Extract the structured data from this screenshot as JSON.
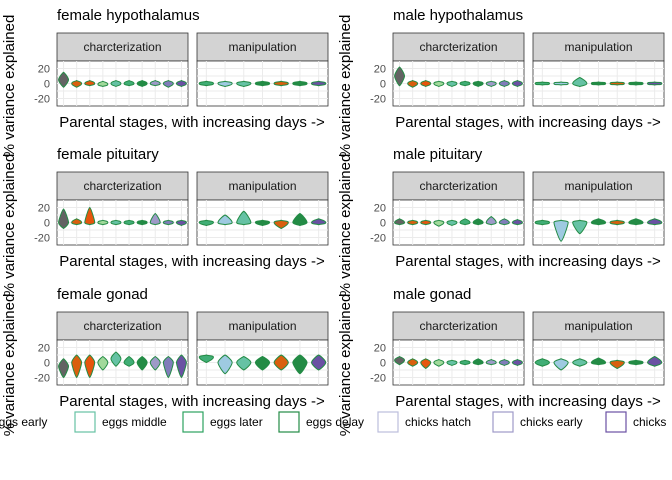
{
  "panel_labels": {
    "strips": [
      "charcterization",
      "manipulation"
    ],
    "xlabel": "Parental stages, with increasing days ->",
    "ylabel": "% variance explained",
    "yticks": [
      "20",
      "0",
      "-20"
    ]
  },
  "legend": {
    "items": [
      {
        "label": "eggs early",
        "color": "#4d4d4d"
      },
      {
        "label": "eggs middle",
        "color": "#66c2a4"
      },
      {
        "label": "eggs later",
        "color": "#2ca25f"
      },
      {
        "label": "eggs delay",
        "color": "#238b45"
      },
      {
        "label": "chicks hatch",
        "color": "#bcbddc"
      },
      {
        "label": "chicks early",
        "color": "#9e9ac8"
      },
      {
        "label": "chicks",
        "color": "#6a51a3"
      }
    ]
  },
  "colors": {
    "strip_bg": "#d3d3d3",
    "panel_border": "#333333",
    "grid": "#ebebeb",
    "violin_stroke": "#238b45",
    "char_fill": [
      "#636363",
      "#d95f0e",
      "#e6550d",
      "#a1d99b",
      "#66c2a4",
      "#41ae76",
      "#238b45",
      "#9e9ac8",
      "#807dba",
      "#6a51a3"
    ],
    "manip_fill": [
      "#41ae76",
      "#9ecae1",
      "#66c2a4",
      "#238b45",
      "#d95f0e",
      "#238b45",
      "#6a51a3"
    ]
  },
  "chart_data": [
    {
      "type": "violin",
      "title": "female hypothalamus",
      "ylim": [
        -30,
        30
      ],
      "series": [
        {
          "name": "charcterization",
          "center": [
            5,
            0,
            0,
            -1,
            0,
            0,
            0,
            0,
            0,
            0
          ],
          "min": [
            -5,
            -5,
            -3,
            -4,
            -4,
            -3,
            -4,
            -3,
            -5,
            -4
          ],
          "max": [
            15,
            4,
            4,
            3,
            4,
            4,
            4,
            4,
            4,
            4
          ]
        },
        {
          "name": "manipulation",
          "center": [
            0,
            0,
            0,
            0,
            0,
            0,
            0
          ],
          "min": [
            -3,
            -4,
            -4,
            -3,
            -3,
            -3,
            -3
          ],
          "max": [
            3,
            3,
            3,
            3,
            3,
            3,
            3
          ]
        }
      ]
    },
    {
      "type": "violin",
      "title": "male hypothalamus",
      "ylim": [
        -30,
        30
      ],
      "series": [
        {
          "name": "charcterization",
          "center": [
            10,
            0,
            0,
            0,
            0,
            0,
            0,
            0,
            0,
            0
          ],
          "min": [
            -3,
            -5,
            -4,
            -4,
            -4,
            -3,
            -4,
            -4,
            -4,
            -4
          ],
          "max": [
            22,
            4,
            4,
            3,
            3,
            3,
            3,
            3,
            4,
            4
          ]
        },
        {
          "name": "manipulation",
          "center": [
            0,
            0,
            0,
            0,
            0,
            0,
            0
          ],
          "min": [
            -2,
            -2,
            -4,
            -2,
            -2,
            -2,
            -2
          ],
          "max": [
            2,
            2,
            8,
            2,
            2,
            2,
            2
          ]
        }
      ]
    },
    {
      "type": "violin",
      "title": "female pituitary",
      "ylim": [
        -30,
        30
      ],
      "series": [
        {
          "name": "charcterization",
          "center": [
            0,
            0,
            0,
            0,
            0,
            0,
            0,
            0,
            0,
            0
          ],
          "min": [
            -8,
            -3,
            -3,
            -3,
            -3,
            -3,
            -3,
            -3,
            -3,
            -4
          ],
          "max": [
            18,
            5,
            20,
            3,
            3,
            3,
            3,
            12,
            3,
            3
          ]
        },
        {
          "name": "manipulation",
          "center": [
            0,
            0,
            0,
            0,
            0,
            0,
            0
          ],
          "min": [
            -4,
            -3,
            -3,
            -4,
            -8,
            -4,
            -3
          ],
          "max": [
            3,
            10,
            15,
            3,
            3,
            12,
            5
          ]
        }
      ]
    },
    {
      "type": "violin",
      "title": "male pituitary",
      "ylim": [
        -30,
        30
      ],
      "series": [
        {
          "name": "charcterization",
          "center": [
            0,
            0,
            0,
            0,
            0,
            0,
            0,
            0,
            0,
            0
          ],
          "min": [
            -3,
            -3,
            -3,
            -5,
            -4,
            -3,
            -3,
            -3,
            -3,
            -3
          ],
          "max": [
            5,
            3,
            3,
            3,
            3,
            5,
            5,
            8,
            5,
            4
          ]
        },
        {
          "name": "manipulation",
          "center": [
            0,
            0,
            0,
            0,
            0,
            0,
            0
          ],
          "min": [
            -3,
            -25,
            -15,
            -3,
            -3,
            -3,
            -3
          ],
          "max": [
            3,
            3,
            3,
            5,
            3,
            5,
            5
          ]
        }
      ]
    },
    {
      "type": "violin",
      "title": "female gonad",
      "ylim": [
        -30,
        30
      ],
      "series": [
        {
          "name": "charcterization",
          "center": [
            -5,
            0,
            0,
            0,
            5,
            0,
            0,
            0,
            0,
            0
          ],
          "min": [
            -20,
            -20,
            -20,
            -10,
            -5,
            -5,
            -10,
            -10,
            -20,
            -20
          ],
          "max": [
            5,
            10,
            10,
            8,
            14,
            8,
            8,
            8,
            8,
            10
          ]
        },
        {
          "name": "manipulation",
          "center": [
            7,
            0,
            0,
            0,
            0,
            0,
            0
          ],
          "min": [
            0,
            -15,
            -10,
            -10,
            -10,
            -15,
            -10
          ],
          "max": [
            10,
            10,
            8,
            8,
            10,
            10,
            10
          ]
        }
      ]
    },
    {
      "type": "violin",
      "title": "male gonad",
      "ylim": [
        -30,
        30
      ],
      "series": [
        {
          "name": "charcterization",
          "center": [
            3,
            0,
            0,
            0,
            0,
            0,
            0,
            0,
            0,
            0
          ],
          "min": [
            -3,
            -5,
            -8,
            -5,
            -4,
            -3,
            -3,
            -3,
            -4,
            -4
          ],
          "max": [
            8,
            5,
            5,
            4,
            3,
            3,
            5,
            4,
            4,
            4
          ]
        },
        {
          "name": "manipulation",
          "center": [
            0,
            0,
            0,
            0,
            0,
            0,
            0
          ],
          "min": [
            -5,
            -10,
            -5,
            -3,
            -8,
            -3,
            -5
          ],
          "max": [
            5,
            5,
            5,
            6,
            3,
            3,
            8
          ]
        }
      ]
    }
  ]
}
